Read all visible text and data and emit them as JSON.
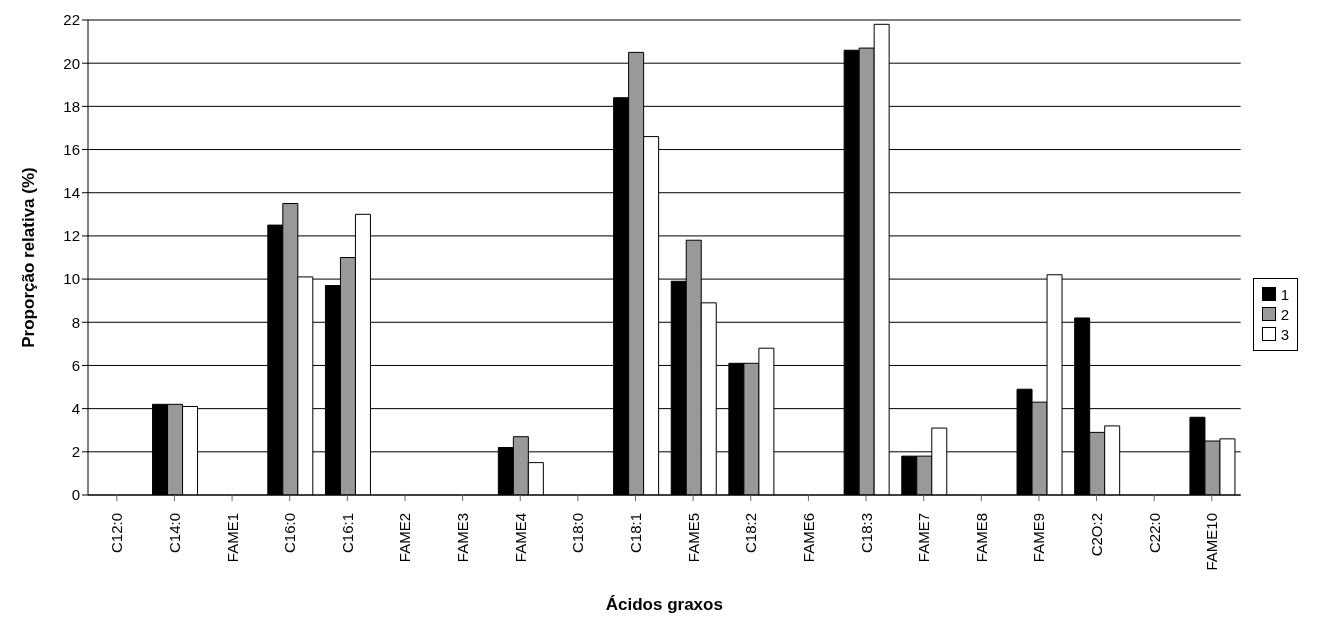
{
  "chart_data": {
    "type": "bar",
    "xlabel": "Ácidos graxos",
    "ylabel": "Proporção relativa (%)",
    "categories": [
      "C12:0",
      "C14:0",
      "FAME1",
      "C16:0",
      "C16:1",
      "FAME2",
      "FAME3",
      "FAME4",
      "C18:0",
      "C18:1",
      "FAME5",
      "C18:2",
      "FAME6",
      "C18:3",
      "FAME7",
      "FAME8",
      "FAME9",
      "C2O:2",
      "C22:0",
      "FAME10"
    ],
    "series": [
      {
        "name": "1",
        "color": "#000000",
        "values": [
          0,
          4.2,
          0,
          12.5,
          9.7,
          0,
          0,
          2.2,
          0,
          18.4,
          9.9,
          6.1,
          0,
          20.6,
          1.8,
          0,
          4.9,
          8.2,
          0,
          3.6
        ]
      },
      {
        "name": "2",
        "color": "#999999",
        "values": [
          0,
          4.2,
          0,
          13.5,
          11.0,
          0,
          0,
          2.7,
          0,
          20.5,
          11.8,
          6.1,
          0,
          20.7,
          1.8,
          0,
          4.3,
          2.9,
          0,
          2.5
        ]
      },
      {
        "name": "3",
        "color": "#ffffff",
        "values": [
          0,
          4.1,
          0,
          10.1,
          13.0,
          0,
          0,
          1.5,
          0,
          16.6,
          8.9,
          6.8,
          0,
          21.8,
          3.1,
          0,
          10.2,
          3.2,
          0,
          2.6
        ]
      }
    ],
    "ylim": [
      0,
      22
    ],
    "yticks": [
      0,
      2,
      4,
      6,
      8,
      10,
      12,
      14,
      16,
      18,
      20,
      22
    ],
    "grid": "y",
    "legend": "right"
  }
}
